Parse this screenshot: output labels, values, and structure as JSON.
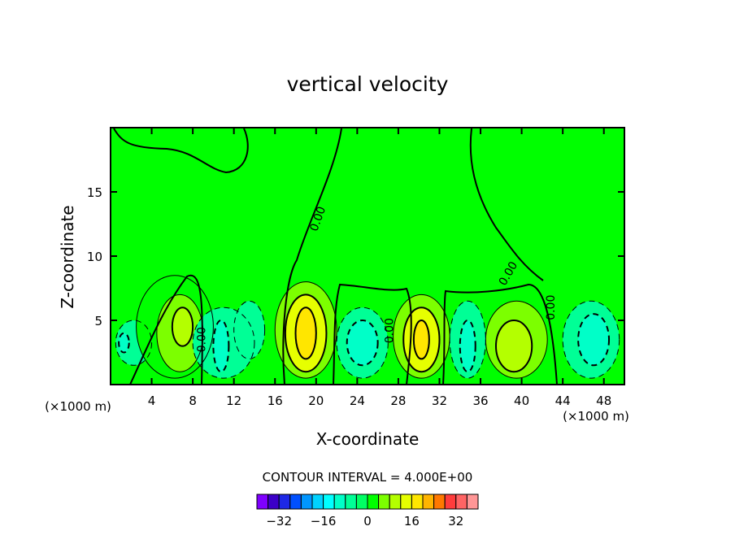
{
  "chart_data": {
    "type": "heatmap",
    "title": "vertical velocity",
    "xlabel": "X-coordinate",
    "ylabel": "Z-coordinate",
    "x_unit_left": "(×1000 m)",
    "x_unit_right": "(×1000 m)",
    "xlim": [
      0,
      50
    ],
    "ylim": [
      0,
      20
    ],
    "x_ticks": [
      4,
      8,
      12,
      16,
      20,
      24,
      28,
      32,
      36,
      40,
      44,
      48
    ],
    "y_ticks": [
      5,
      10,
      15
    ],
    "contour_interval_text": "CONTOUR INTERVAL = 4.000E+00",
    "contour_interval": 4,
    "zero_contour_labels": [
      "0.00",
      "0.00",
      "0.00",
      "0.00",
      "0.00"
    ],
    "colorbar": {
      "levels": [
        -36,
        -32,
        -28,
        -24,
        -20,
        -16,
        -12,
        -8,
        -4,
        0,
        4,
        8,
        12,
        16,
        20,
        24,
        28,
        32,
        36
      ],
      "colors": [
        "#7f00ff",
        "#3c00c8",
        "#1e28e6",
        "#0050ff",
        "#0096ff",
        "#00d2ff",
        "#00ffff",
        "#00ffc8",
        "#00ff96",
        "#00ff64",
        "#00ff00",
        "#7cff00",
        "#b4ff00",
        "#e6ff00",
        "#ffe600",
        "#ffb400",
        "#ff7800",
        "#ff3c3c",
        "#ff6464",
        "#ff9696"
      ],
      "tick_labels": [
        "-32",
        "-16",
        "0",
        "16",
        "32"
      ]
    },
    "cells": [
      {
        "x": [
          0.5,
          4
        ],
        "z": [
          1.5,
          5
        ],
        "value": -6
      },
      {
        "x": [
          0.8,
          1.8
        ],
        "z": [
          2.5,
          4
        ],
        "value": -10
      },
      {
        "x": [
          2.5,
          10
        ],
        "z": [
          0.5,
          8.5
        ],
        "value": 2
      },
      {
        "x": [
          4.5,
          9
        ],
        "z": [
          1,
          7
        ],
        "value": 6
      },
      {
        "x": [
          6,
          8
        ],
        "z": [
          3,
          6
        ],
        "value": 10
      },
      {
        "x": [
          8,
          14
        ],
        "z": [
          0.5,
          6
        ],
        "value": -6
      },
      {
        "x": [
          10,
          11.5
        ],
        "z": [
          1,
          5
        ],
        "value": -10
      },
      {
        "x": [
          12,
          15
        ],
        "z": [
          2,
          6.5
        ],
        "value": -6
      },
      {
        "x": [
          16,
          22
        ],
        "z": [
          0.5,
          8
        ],
        "value": 6
      },
      {
        "x": [
          17,
          21
        ],
        "z": [
          1,
          7
        ],
        "value": 12
      },
      {
        "x": [
          18,
          20
        ],
        "z": [
          2,
          6
        ],
        "value": 18
      },
      {
        "x": [
          22,
          27
        ],
        "z": [
          0.5,
          6
        ],
        "value": -6
      },
      {
        "x": [
          23,
          26
        ],
        "z": [
          1.5,
          5
        ],
        "value": -12
      },
      {
        "x": [
          27.5,
          33
        ],
        "z": [
          0.5,
          7
        ],
        "value": 6
      },
      {
        "x": [
          28.5,
          32
        ],
        "z": [
          1,
          6
        ],
        "value": 12
      },
      {
        "x": [
          29.5,
          31
        ],
        "z": [
          2,
          5
        ],
        "value": 18
      },
      {
        "x": [
          33,
          36.5
        ],
        "z": [
          0.5,
          6.5
        ],
        "value": -6
      },
      {
        "x": [
          34,
          35.5
        ],
        "z": [
          1,
          5
        ],
        "value": -10
      },
      {
        "x": [
          36.5,
          42.5
        ],
        "z": [
          0.5,
          6.5
        ],
        "value": 6
      },
      {
        "x": [
          37.5,
          41
        ],
        "z": [
          1,
          5
        ],
        "value": 10
      },
      {
        "x": [
          44,
          49.5
        ],
        "z": [
          0.5,
          6.5
        ],
        "value": -6
      },
      {
        "x": [
          45.5,
          48.5
        ],
        "z": [
          1.5,
          5.5
        ],
        "value": -10
      }
    ],
    "background_value": 0
  }
}
